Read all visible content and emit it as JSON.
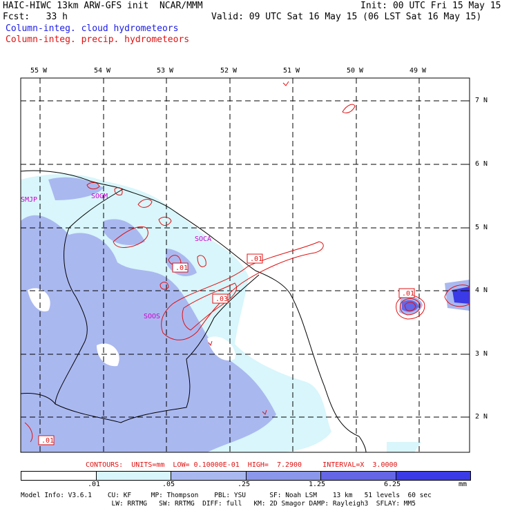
{
  "header": {
    "title": "HAIC-HIWC 13km ARW-GFS init  NCAR/MMM",
    "init": "Init: 00 UTC Fri 15 May 15",
    "fcst": "Fcst:   33 h",
    "valid": "Valid: 09 UTC Sat 16 May 15 (06 LST Sat 16 May 15)",
    "field_cloud": "Column-integ. cloud hydrometeors",
    "field_precip": "Column-integ. precip. hydrometeors"
  },
  "colors": {
    "cloud_label": "#1a1ae6",
    "precip_label": "#e01010",
    "shade_01": "#d8f6fb",
    "shade_05": "#aab8f0",
    "shade_25": "#8a97ea",
    "shade_125": "#6466e6",
    "shade_625": "#3a3ae6",
    "contour": "#e01010",
    "station": "#cc00cc"
  },
  "axes": {
    "lon_labels": [
      "55 W",
      "54 W",
      "53 W",
      "52 W",
      "51 W",
      "50 W",
      "49 W"
    ],
    "lat_labels": [
      "7 N",
      "6 N",
      "5 N",
      "4 N",
      "3 N",
      "2 N"
    ]
  },
  "stations": [
    "SMJP",
    "SOGM",
    "SOCA",
    "SOOS"
  ],
  "contour_labels": [
    ".01",
    ".01",
    ".03",
    ".01",
    ".01"
  ],
  "contour_info": "CONTOURS:  UNITS=mm  LOW= 0.10000E-01  HIGH=  7.2900     INTERVAL=X  3.0000",
  "colorbar": {
    "ticks": [
      ".01",
      ".05",
      ".25",
      "1.25",
      "6.25"
    ],
    "unit": "mm"
  },
  "model_info": {
    "line1": "Model Info: V3.6.1    CU: KF     MP: Thompson    PBL: YSU      SF: Noah LSM    13 km   51 levels  60 sec",
    "line2": "                       LW: RRTMG   SW: RRTMG  DIFF: full   KM: 2D Smagor DAMP: Rayleigh3  SFLAY: MM5"
  }
}
